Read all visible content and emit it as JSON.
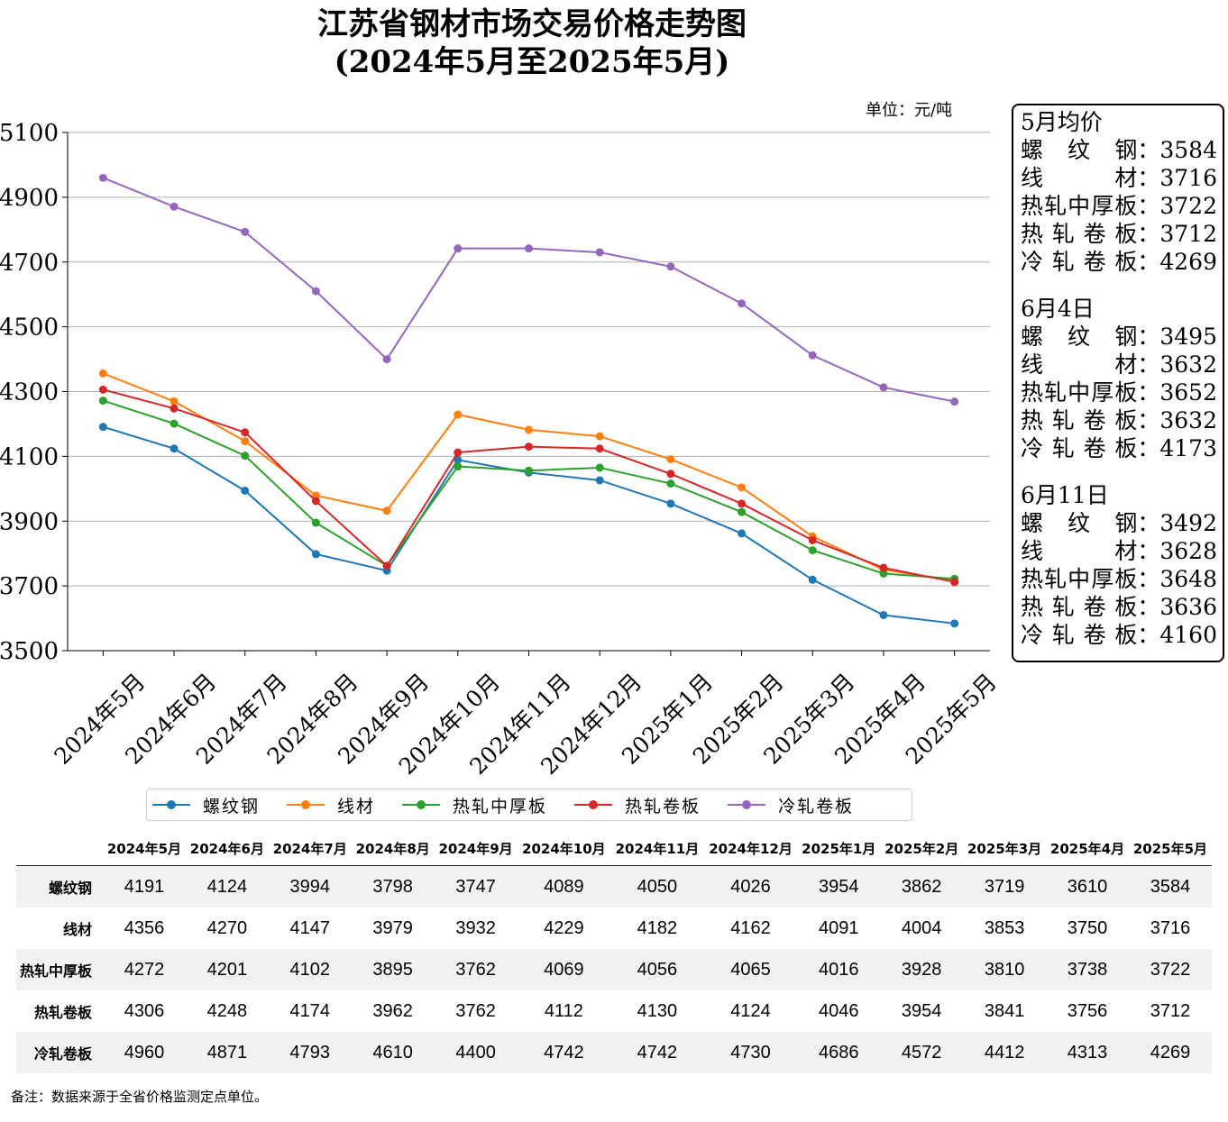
{
  "title_line1": "江苏省钢材市场交易价格走势图",
  "title_line2": "(2024年5月至2025年5月)",
  "unit": "单位：元/吨",
  "note": "备注：数据来源于全省价格监测定点单位。",
  "chart_data": {
    "type": "line",
    "categories": [
      "2024年5月",
      "2024年6月",
      "2024年7月",
      "2024年8月",
      "2024年9月",
      "2024年10月",
      "2024年11月",
      "2024年12月",
      "2025年1月",
      "2025年2月",
      "2025年3月",
      "2025年4月",
      "2025年5月"
    ],
    "series": [
      {
        "name": "螺纹钢",
        "color": "#1f77b4",
        "values": [
          4191,
          4124,
          3994,
          3798,
          3747,
          4089,
          4050,
          4026,
          3954,
          3862,
          3719,
          3610,
          3584
        ]
      },
      {
        "name": "线材",
        "color": "#ff7f0e",
        "values": [
          4356,
          4270,
          4147,
          3979,
          3932,
          4229,
          4182,
          4162,
          4091,
          4004,
          3853,
          3750,
          3716
        ]
      },
      {
        "name": "热轧中厚板",
        "color": "#2ca02c",
        "values": [
          4272,
          4201,
          4102,
          3895,
          3762,
          4069,
          4056,
          4065,
          4016,
          3928,
          3810,
          3738,
          3722
        ]
      },
      {
        "name": "热轧卷板",
        "color": "#d62728",
        "values": [
          4306,
          4248,
          4174,
          3962,
          3762,
          4112,
          4130,
          4124,
          4046,
          3954,
          3841,
          3756,
          3712
        ]
      },
      {
        "name": "冷轧卷板",
        "color": "#9467bd",
        "values": [
          4960,
          4871,
          4793,
          4610,
          4400,
          4742,
          4742,
          4730,
          4686,
          4572,
          4412,
          4313,
          4269
        ]
      }
    ],
    "ylim": [
      3500,
      5100
    ],
    "yticks": [
      3500,
      3700,
      3900,
      4100,
      4300,
      4500,
      4700,
      4900,
      5100
    ],
    "grid": "horizontal",
    "legend_placement": "bottom"
  },
  "sidebox": [
    {
      "heading": "5月均价",
      "rows": [
        {
          "label": "螺纹钢",
          "value": "3584"
        },
        {
          "label": "线材",
          "value": "3716"
        },
        {
          "label": "热轧中厚板",
          "value": "3722"
        },
        {
          "label": "热轧卷板",
          "value": "3712"
        },
        {
          "label": "冷轧卷板",
          "value": "4269"
        }
      ]
    },
    {
      "heading": "6月4日",
      "rows": [
        {
          "label": "螺纹钢",
          "value": "3495"
        },
        {
          "label": "线材",
          "value": "3632"
        },
        {
          "label": "热轧中厚板",
          "value": "3652"
        },
        {
          "label": "热轧卷板",
          "value": "3632"
        },
        {
          "label": "冷轧卷板",
          "value": "4173"
        }
      ]
    },
    {
      "heading": "6月11日",
      "rows": [
        {
          "label": "螺纹钢",
          "value": "3492"
        },
        {
          "label": "线材",
          "value": "3628"
        },
        {
          "label": "热轧中厚板",
          "value": "3648"
        },
        {
          "label": "热轧卷板",
          "value": "3636"
        },
        {
          "label": "冷轧卷板",
          "value": "4160"
        }
      ]
    }
  ]
}
